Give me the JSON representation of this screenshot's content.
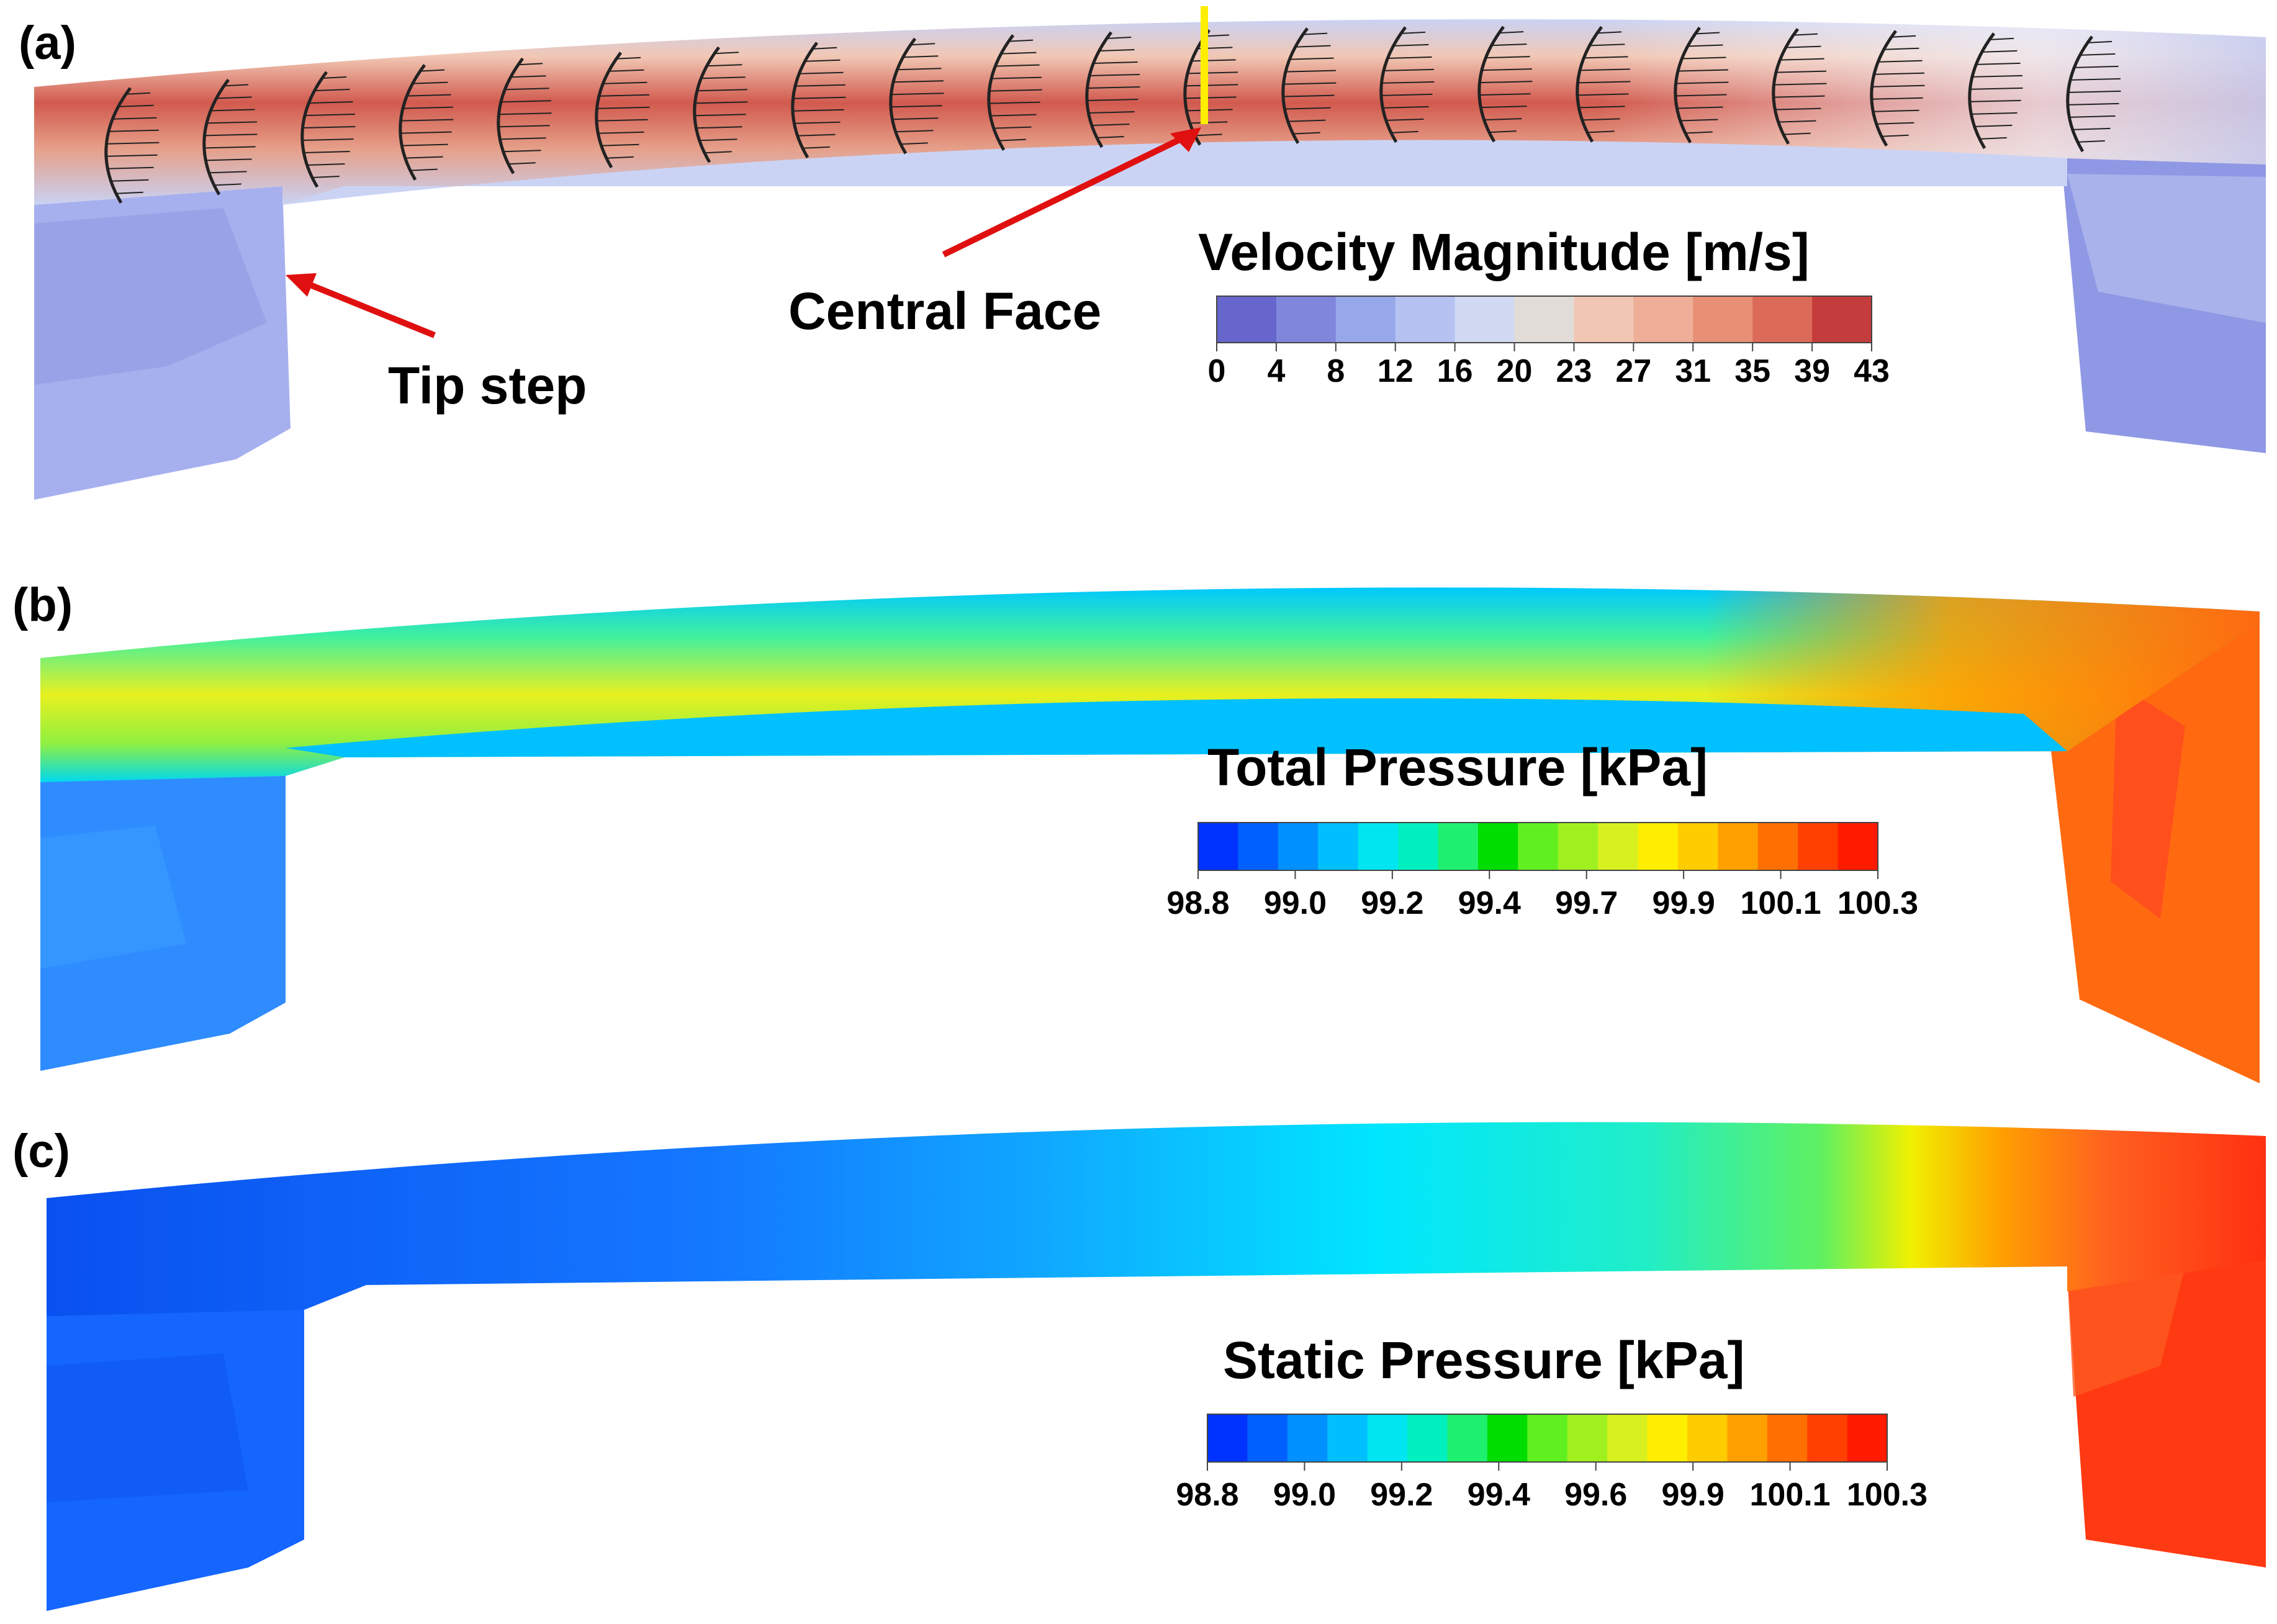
{
  "panels": [
    {
      "label": "(a)",
      "legend": {
        "title": "Velocity Magnitude [m/s]",
        "ticks": [
          "0",
          "4",
          "8",
          "12",
          "16",
          "20",
          "23",
          "27",
          "31",
          "35",
          "39",
          "43"
        ],
        "colors": [
          "#6666cc",
          "#7f86dc",
          "#97a8ea",
          "#b5c2f2",
          "#d2d9f3",
          "#e2dcd8",
          "#f1c7b4",
          "#efae98",
          "#e78f75",
          "#db6b58",
          "#c43c3c"
        ]
      },
      "annotations": {
        "tip_step": "Tip step",
        "central_face": "Central Face"
      }
    },
    {
      "label": "(b)",
      "legend": {
        "title": "Total Pressure [kPa]",
        "ticks": [
          "98.8",
          "99.0",
          "99.2",
          "99.4",
          "99.7",
          "99.9",
          "100.1",
          "100.3"
        ],
        "colors": [
          "#0033ff",
          "#0060ff",
          "#0090ff",
          "#00bfff",
          "#00e5f0",
          "#00f0c0",
          "#20f070",
          "#00dd00",
          "#60f020",
          "#a0f020",
          "#d8f020",
          "#ffee00",
          "#ffcc00",
          "#ffa000",
          "#ff7000",
          "#ff4000",
          "#ff1a00"
        ]
      }
    },
    {
      "label": "(c)",
      "legend": {
        "title": "Static Pressure [kPa]",
        "ticks": [
          "98.8",
          "99.0",
          "99.2",
          "99.4",
          "99.6",
          "99.9",
          "100.1",
          "100.3"
        ],
        "colors": [
          "#0033ff",
          "#0060ff",
          "#0090ff",
          "#00bfff",
          "#00e5f0",
          "#00f0c0",
          "#20f070",
          "#00dd00",
          "#60f020",
          "#a0f020",
          "#d8f020",
          "#ffee00",
          "#ffcc00",
          "#ffa000",
          "#ff7000",
          "#ff4000",
          "#ff1a00"
        ]
      }
    }
  ]
}
